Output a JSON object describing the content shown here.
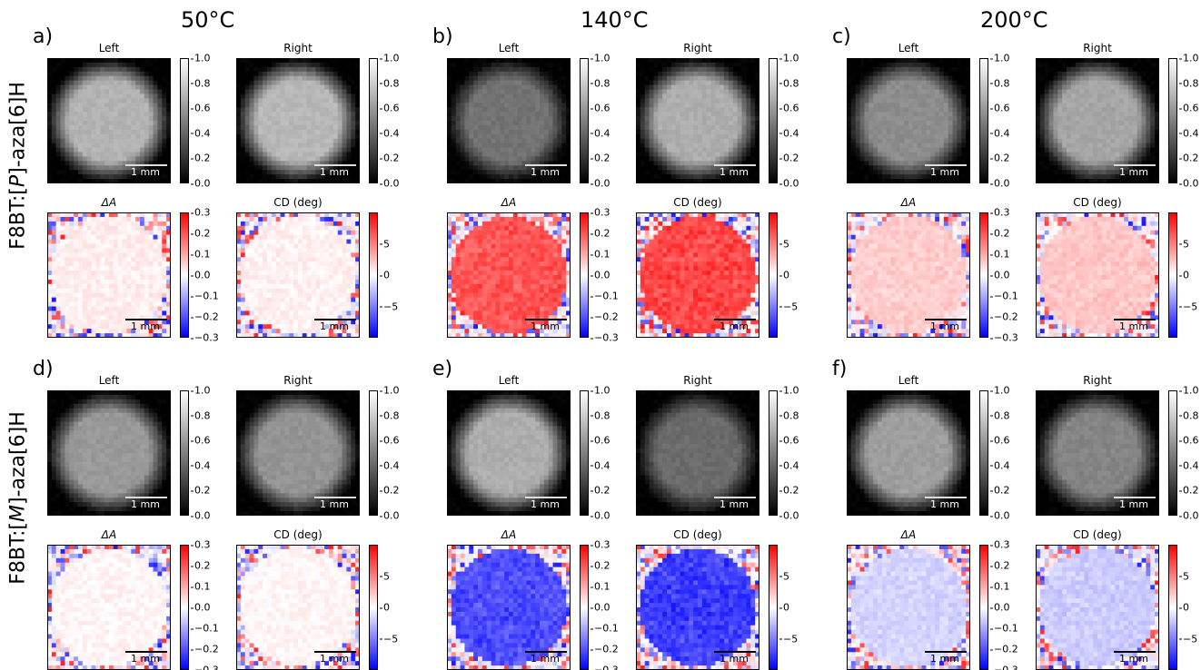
{
  "figure": {
    "columns": [
      {
        "temperature": "50°C"
      },
      {
        "temperature": "140°C"
      },
      {
        "temperature": "200°C"
      }
    ],
    "rows": [
      {
        "label_prefix": "F8BT:[",
        "label_italic": "P",
        "label_suffix": "]-aza[6]H"
      },
      {
        "label_prefix": "F8BT:[",
        "label_italic": "M",
        "label_suffix": "]-aza[6]H"
      }
    ],
    "panel_letters": [
      "a)",
      "b)",
      "c)",
      "d)",
      "e)",
      "f)"
    ],
    "titles": {
      "left": "Left",
      "right": "Right",
      "delta": "ΔA",
      "cd": "CD (deg)"
    },
    "scalebar_label": "1 mm",
    "colorbar_ticks": {
      "intensity": [
        "1.0",
        "0.8",
        "0.6",
        "0.4",
        "0.2",
        "0.0"
      ],
      "delta_a": [
        "0.3",
        "0.2",
        "0.1",
        "0.0",
        "−0.1",
        "−0.2",
        "−0.3"
      ],
      "cd": [
        "5",
        "0",
        "−5"
      ]
    },
    "colormaps": {
      "intensity": [
        "#000000",
        "#ffffff"
      ],
      "diverging": [
        "#0000ff",
        "#ffffff",
        "#ff0000"
      ]
    },
    "chart_data": [
      {
        "type": "heatmap",
        "panel": "a",
        "temperature": "50°C",
        "intensity_left": 0.7,
        "intensity_right": 0.72,
        "delta_a_mean": 0.02,
        "cd_mean_deg": 0.5
      },
      {
        "type": "heatmap",
        "panel": "b",
        "temperature": "140°C",
        "intensity_left": 0.45,
        "intensity_right": 0.68,
        "delta_a_mean": 0.2,
        "cd_mean_deg": 6.5
      },
      {
        "type": "heatmap",
        "panel": "c",
        "temperature": "200°C",
        "intensity_left": 0.55,
        "intensity_right": 0.65,
        "delta_a_mean": 0.06,
        "cd_mean_deg": 2.0
      },
      {
        "type": "heatmap",
        "panel": "d",
        "temperature": "50°C",
        "intensity_left": 0.6,
        "intensity_right": 0.58,
        "delta_a_mean": 0.01,
        "cd_mean_deg": 0.3
      },
      {
        "type": "heatmap",
        "panel": "e",
        "temperature": "140°C",
        "intensity_left": 0.68,
        "intensity_right": 0.42,
        "delta_a_mean": -0.21,
        "cd_mean_deg": -6.8
      },
      {
        "type": "heatmap",
        "panel": "f",
        "temperature": "200°C",
        "intensity_left": 0.62,
        "intensity_right": 0.52,
        "delta_a_mean": -0.05,
        "cd_mean_deg": -1.8
      }
    ]
  }
}
